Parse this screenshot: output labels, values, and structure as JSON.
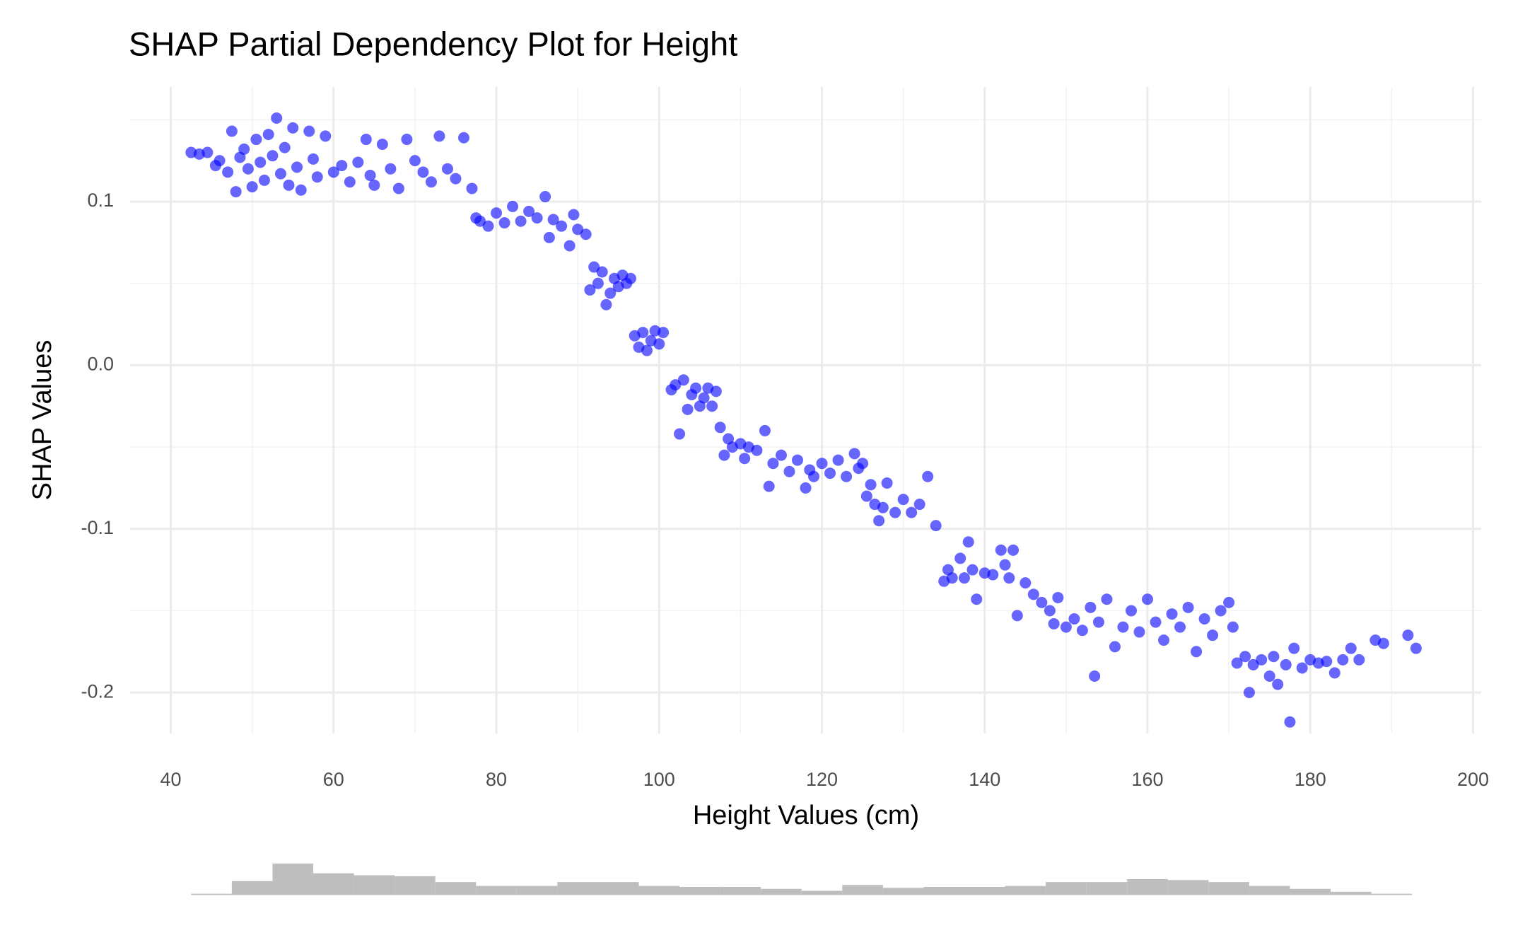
{
  "chart_data": [
    {
      "type": "scatter",
      "title": "SHAP Partial Dependency Plot for Height",
      "x_label": "Height Values (cm)",
      "y_label": "SHAP Values",
      "color": "#0000ff",
      "grid": true,
      "minor_grid": true,
      "xlim": [
        35,
        201
      ],
      "ylim": [
        -0.225,
        0.17
      ],
      "xticks": [
        40,
        60,
        80,
        100,
        120,
        140,
        160,
        180,
        200
      ],
      "yticks": [
        {
          "value": -0.2,
          "label": "-0.2"
        },
        {
          "value": -0.1,
          "label": "-0.1"
        },
        {
          "value": 0,
          "label": "0.0"
        },
        0.1
      ],
      "x": [
        42.5,
        43.5,
        44.5,
        45.5,
        46,
        47,
        47.5,
        48,
        48.5,
        49,
        49.5,
        50,
        50.5,
        51,
        51.5,
        52,
        52.5,
        53,
        53.5,
        54,
        54.5,
        55,
        55.5,
        56,
        57,
        57.5,
        58,
        59,
        60,
        61,
        62,
        63,
        64,
        64.5,
        65,
        66,
        67,
        68,
        69,
        70,
        71,
        72,
        73,
        74,
        75,
        76,
        77,
        77.5,
        78,
        79,
        80,
        81,
        82,
        83,
        84,
        85,
        86,
        86.5,
        87,
        88,
        89,
        89.5,
        90,
        91,
        91.5,
        92,
        92.5,
        93,
        93.5,
        94,
        94.5,
        95,
        95.5,
        96,
        96.5,
        97,
        97.5,
        98,
        98.5,
        99,
        99.5,
        100,
        100.5,
        101.5,
        102,
        102.5,
        103,
        103.5,
        104,
        104.5,
        105,
        105.5,
        106,
        106.5,
        107,
        107.5,
        108,
        108.5,
        109,
        110,
        110.5,
        111,
        112,
        113,
        113.5,
        114,
        115,
        116,
        117,
        118,
        118.5,
        119,
        120,
        121,
        122,
        123,
        124,
        124.5,
        125,
        125.5,
        126,
        126.5,
        127,
        127.5,
        128,
        129,
        130,
        131,
        132,
        133,
        134,
        135,
        135.5,
        136,
        137,
        137.5,
        138,
        138.5,
        139,
        140,
        141,
        142,
        142.5,
        143,
        143.5,
        144,
        145,
        146,
        147,
        148,
        148.5,
        149,
        150,
        151,
        152,
        153,
        153.5,
        154,
        155,
        156,
        157,
        158,
        159,
        160,
        161,
        162,
        163,
        164,
        165,
        166,
        167,
        168,
        169,
        170,
        170.5,
        171,
        172,
        172.5,
        173,
        174,
        175,
        175.5,
        176,
        177,
        177.5,
        178,
        179,
        180,
        181,
        182,
        183,
        184,
        185,
        186,
        188,
        189,
        192,
        193
      ],
      "values": [
        0.13,
        0.129,
        0.13,
        0.122,
        0.125,
        0.118,
        0.143,
        0.106,
        0.127,
        0.132,
        0.12,
        0.109,
        0.138,
        0.124,
        0.113,
        0.141,
        0.128,
        0.151,
        0.117,
        0.133,
        0.11,
        0.145,
        0.121,
        0.107,
        0.143,
        0.126,
        0.115,
        0.14,
        0.118,
        0.122,
        0.112,
        0.124,
        0.138,
        0.116,
        0.11,
        0.135,
        0.12,
        0.108,
        0.138,
        0.125,
        0.118,
        0.112,
        0.14,
        0.12,
        0.114,
        0.139,
        0.108,
        0.09,
        0.088,
        0.085,
        0.093,
        0.087,
        0.097,
        0.088,
        0.094,
        0.09,
        0.103,
        0.078,
        0.089,
        0.085,
        0.073,
        0.092,
        0.083,
        0.08,
        0.046,
        0.06,
        0.05,
        0.057,
        0.037,
        0.044,
        0.053,
        0.048,
        0.055,
        0.05,
        0.053,
        0.018,
        0.011,
        0.02,
        0.009,
        0.015,
        0.021,
        0.013,
        0.02,
        -0.015,
        -0.012,
        -0.042,
        -0.009,
        -0.027,
        -0.018,
        -0.014,
        -0.025,
        -0.02,
        -0.014,
        -0.025,
        -0.016,
        -0.038,
        -0.055,
        -0.045,
        -0.05,
        -0.048,
        -0.057,
        -0.05,
        -0.052,
        -0.04,
        -0.074,
        -0.06,
        -0.055,
        -0.065,
        -0.058,
        -0.075,
        -0.064,
        -0.068,
        -0.06,
        -0.066,
        -0.058,
        -0.068,
        -0.054,
        -0.063,
        -0.06,
        -0.08,
        -0.073,
        -0.085,
        -0.095,
        -0.087,
        -0.072,
        -0.09,
        -0.082,
        -0.09,
        -0.085,
        -0.068,
        -0.098,
        -0.132,
        -0.125,
        -0.13,
        -0.118,
        -0.13,
        -0.108,
        -0.125,
        -0.143,
        -0.127,
        -0.128,
        -0.113,
        -0.122,
        -0.13,
        -0.113,
        -0.153,
        -0.133,
        -0.14,
        -0.145,
        -0.15,
        -0.158,
        -0.142,
        -0.16,
        -0.155,
        -0.162,
        -0.148,
        -0.19,
        -0.157,
        -0.143,
        -0.172,
        -0.16,
        -0.15,
        -0.163,
        -0.143,
        -0.157,
        -0.168,
        -0.152,
        -0.16,
        -0.148,
        -0.175,
        -0.155,
        -0.165,
        -0.15,
        -0.145,
        -0.16,
        -0.182,
        -0.178,
        -0.2,
        -0.183,
        -0.18,
        -0.19,
        -0.178,
        -0.195,
        -0.183,
        -0.218,
        -0.173,
        -0.185,
        -0.18,
        -0.182,
        -0.181,
        -0.188,
        -0.18,
        -0.173,
        -0.18,
        -0.168,
        -0.17,
        -0.165,
        -0.173
      ]
    },
    {
      "type": "histogram",
      "color": "#bebebe",
      "bins": [
        42.5,
        47.5,
        52.5,
        57.5,
        62.5,
        67.5,
        72.5,
        77.5,
        82.5,
        87.5,
        92.5,
        97.5,
        102.5,
        107.5,
        112.5,
        117.5,
        122.5,
        127.5,
        132.5,
        137.5,
        142.5,
        147.5,
        152.5,
        157.5,
        162.5,
        167.5,
        172.5,
        177.5,
        182.5,
        187.5,
        192.5
      ],
      "values": [
        1,
        14,
        32,
        22,
        20,
        19,
        13,
        9,
        9,
        13,
        13,
        9,
        8,
        8,
        6,
        4,
        10,
        7,
        8,
        8,
        9,
        13,
        13,
        16,
        15,
        13,
        9,
        6,
        3,
        1
      ]
    }
  ]
}
